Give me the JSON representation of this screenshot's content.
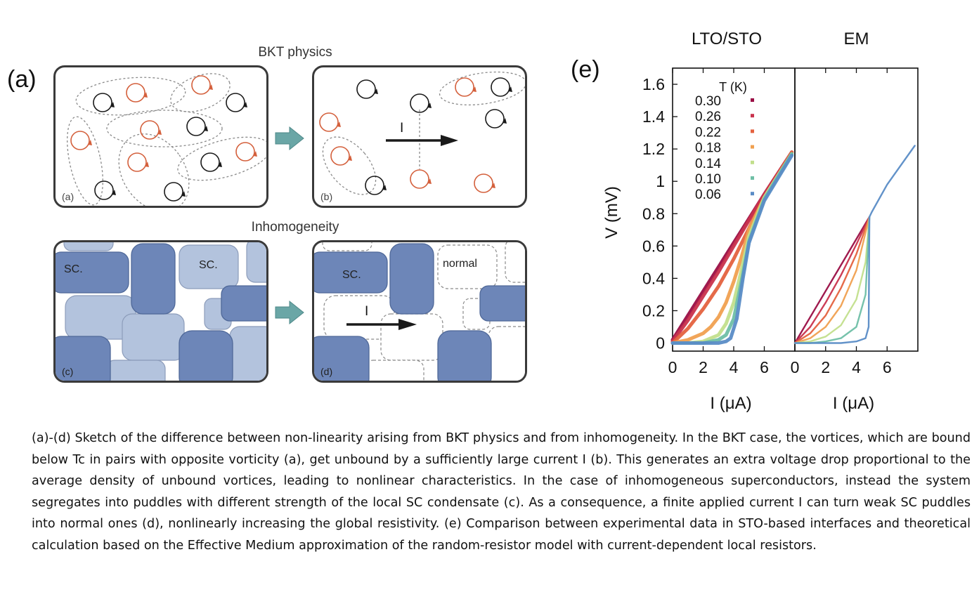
{
  "figure": {
    "panel_a_tag": "(a)",
    "panel_e_tag": "(e)",
    "bkt_title": "BKT physics",
    "inhom_title": "Inhomogeneity",
    "sub_a": "(a)",
    "sub_b": "(b)",
    "sub_c": "(c)",
    "sub_d": "(d)",
    "current_label": "I",
    "sc_label": "SC.",
    "normal_label": "normal",
    "colors": {
      "vortex_black": "#1a1a1a",
      "vortex_red": "#d4603c",
      "arrow_teal": "#6aa6a6",
      "sc_dark": "#6d86b8",
      "sc_light": "#b3c3dd",
      "dashed": "#8a8a8a"
    }
  },
  "chart_data": [
    {
      "type": "line",
      "title": "LTO/STO",
      "xlabel": "I (μA)",
      "ylabel": "V (mV)",
      "xlim": [
        0,
        8
      ],
      "ylim": [
        -0.05,
        1.7
      ],
      "xticks": [
        "0",
        "2",
        "4",
        "6"
      ],
      "yticks": [
        "0",
        "0.2",
        "0.4",
        "0.6",
        "0.8",
        "1",
        "1.2",
        "1.4",
        "1.6"
      ],
      "legend_title": "T (K)",
      "legend_position": "top-left",
      "series": [
        {
          "name": "0.30",
          "color": "#9a0e45",
          "x": [
            0,
            1,
            2,
            3,
            4,
            5,
            6,
            7.8
          ],
          "y": [
            0.02,
            0.17,
            0.32,
            0.47,
            0.62,
            0.77,
            0.92,
            1.18
          ]
        },
        {
          "name": "0.26",
          "color": "#c9334d",
          "x": [
            0,
            1,
            2,
            3,
            4,
            5,
            6,
            7.8
          ],
          "y": [
            0.01,
            0.14,
            0.29,
            0.44,
            0.6,
            0.76,
            0.92,
            1.18
          ]
        },
        {
          "name": "0.22",
          "color": "#e4623f",
          "x": [
            0,
            1,
            2,
            3,
            4,
            5,
            6,
            7.8
          ],
          "y": [
            0.0,
            0.09,
            0.21,
            0.35,
            0.52,
            0.71,
            0.9,
            1.18
          ]
        },
        {
          "name": "0.18",
          "color": "#f0a050",
          "x": [
            0,
            1,
            2,
            2.5,
            3,
            3.5,
            4,
            4.5,
            5,
            6,
            7.8
          ],
          "y": [
            0.0,
            0.02,
            0.06,
            0.1,
            0.16,
            0.25,
            0.38,
            0.53,
            0.7,
            0.9,
            1.17
          ]
        },
        {
          "name": "0.14",
          "color": "#c2df8c",
          "x": [
            0,
            1,
            2,
            3,
            3.5,
            4,
            4.5,
            5,
            6,
            7.8
          ],
          "y": [
            0.0,
            0.0,
            0.01,
            0.05,
            0.12,
            0.25,
            0.45,
            0.66,
            0.9,
            1.17
          ]
        },
        {
          "name": "0.10",
          "color": "#6fbfa6",
          "x": [
            0,
            1,
            2,
            3,
            3.5,
            4,
            4.5,
            5,
            6,
            7.8
          ],
          "y": [
            0.0,
            0.0,
            0.0,
            0.02,
            0.05,
            0.15,
            0.38,
            0.63,
            0.89,
            1.17
          ]
        },
        {
          "name": "0.06",
          "color": "#5a8cc6",
          "x": [
            0,
            1,
            2,
            3,
            3.5,
            3.8,
            4.2,
            4.6,
            5,
            6,
            7.8
          ],
          "y": [
            0.0,
            0.0,
            0.0,
            0.0,
            0.01,
            0.03,
            0.15,
            0.4,
            0.62,
            0.88,
            1.16
          ]
        }
      ]
    },
    {
      "type": "line",
      "title": "EM",
      "xlabel": "I (μA)",
      "ylabel": "",
      "xlim": [
        0,
        8
      ],
      "ylim": [
        -0.05,
        1.7
      ],
      "xticks": [
        "0",
        "2",
        "4",
        "6"
      ],
      "series": [
        {
          "color": "#9a0e45",
          "x": [
            0,
            4.85
          ],
          "y": [
            0,
            0.78
          ]
        },
        {
          "color": "#c9334d",
          "x": [
            0,
            1,
            2,
            3,
            4,
            4.85
          ],
          "y": [
            0.0,
            0.1,
            0.25,
            0.42,
            0.61,
            0.78
          ]
        },
        {
          "color": "#e4623f",
          "x": [
            0,
            1,
            2,
            3,
            4,
            4.85
          ],
          "y": [
            0.0,
            0.06,
            0.17,
            0.34,
            0.55,
            0.78
          ]
        },
        {
          "color": "#f0a050",
          "x": [
            0,
            1,
            2,
            3,
            4,
            4.85
          ],
          "y": [
            0.0,
            0.03,
            0.1,
            0.23,
            0.45,
            0.78
          ]
        },
        {
          "color": "#c2df8c",
          "x": [
            0,
            1,
            2,
            3,
            4,
            4.6,
            4.85
          ],
          "y": [
            0.0,
            0.01,
            0.04,
            0.11,
            0.27,
            0.5,
            0.78
          ]
        },
        {
          "color": "#6fbfa6",
          "x": [
            0,
            1,
            2,
            3,
            4,
            4.6,
            4.85
          ],
          "y": [
            0.0,
            0.0,
            0.01,
            0.03,
            0.1,
            0.3,
            0.78
          ]
        },
        {
          "color": "#5a8cc6",
          "x": [
            0,
            2,
            3,
            4,
            4.6,
            4.8,
            4.85,
            5,
            6,
            7.8
          ],
          "y": [
            0.0,
            0.0,
            0.0,
            0.01,
            0.03,
            0.1,
            0.78,
            0.81,
            0.98,
            1.22
          ]
        }
      ]
    }
  ],
  "caption": {
    "text": "(a)-(d) Sketch of the difference between non-linearity arising from BKT physics and from inhomogeneity. In the BKT case, the vortices, which are bound below Tc in pairs with opposite vorticity (a), get unbound by a sufficiently large current I (b). This generates an extra voltage drop proportional to the average density of unbound vortices, leading to nonlinear characteristics. In the case of inhomogeneous superconductors, instead the system segregates into puddles with different strength of the local SC condensate (c). As a consequence, a finite applied current I can turn weak SC puddles into normal ones (d), nonlinearly increasing the global resistivity. (e) Comparison between experimental data in STO-based interfaces and theoretical calculation based on the Effective Medium approximation of the random-resistor model with current-dependent local resistors."
  }
}
